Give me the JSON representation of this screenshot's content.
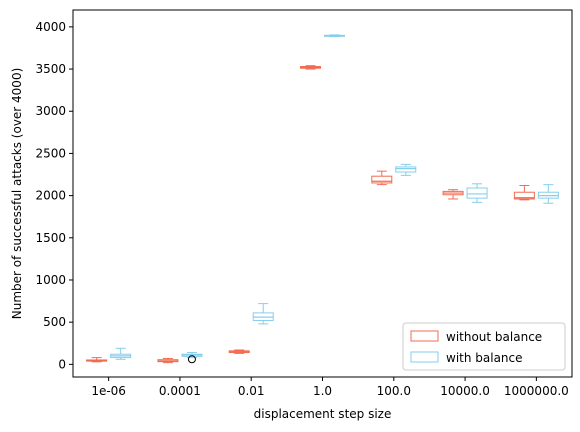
{
  "chart_data": {
    "type": "box",
    "xlabel": "displacement step size",
    "ylabel": "Number of successful attacks (over 4000)",
    "ylim": [
      -150,
      4200
    ],
    "yticks": [
      0,
      500,
      1000,
      1500,
      2000,
      2500,
      3000,
      3500,
      4000
    ],
    "categories": [
      "1e-06",
      "0.0001",
      "0.01",
      "1.0",
      "100.0",
      "10000.0",
      "1000000.0"
    ],
    "legend_position": "lower-right",
    "series": [
      {
        "name": "without balance",
        "color": "#f26b50",
        "boxes": [
          {
            "whislo": 30,
            "q1": 38,
            "med": 45,
            "q3": 52,
            "whishi": 80,
            "fliers": []
          },
          {
            "whislo": 20,
            "q1": 32,
            "med": 40,
            "q3": 55,
            "whishi": 70,
            "fliers": []
          },
          {
            "whislo": 130,
            "q1": 140,
            "med": 150,
            "q3": 160,
            "whishi": 170,
            "fliers": []
          },
          {
            "whislo": 3500,
            "q1": 3510,
            "med": 3520,
            "q3": 3530,
            "whishi": 3540,
            "fliers": []
          },
          {
            "whislo": 2130,
            "q1": 2150,
            "med": 2170,
            "q3": 2230,
            "whishi": 2290,
            "fliers": []
          },
          {
            "whislo": 1960,
            "q1": 2010,
            "med": 2030,
            "q3": 2050,
            "whishi": 2070,
            "fliers": []
          },
          {
            "whislo": 1950,
            "q1": 1960,
            "med": 1975,
            "q3": 2040,
            "whishi": 2120,
            "fliers": []
          }
        ]
      },
      {
        "name": "with balance",
        "color": "#87ceeb",
        "boxes": [
          {
            "whislo": 60,
            "q1": 80,
            "med": 100,
            "q3": 120,
            "whishi": 190,
            "fliers": []
          },
          {
            "whislo": 80,
            "q1": 95,
            "med": 110,
            "q3": 120,
            "whishi": 140,
            "fliers": [
              60
            ]
          },
          {
            "whislo": 480,
            "q1": 520,
            "med": 560,
            "q3": 610,
            "whishi": 720,
            "fliers": []
          },
          {
            "whislo": 3885,
            "q1": 3890,
            "med": 3895,
            "q3": 3900,
            "whishi": 3905,
            "fliers": []
          },
          {
            "whislo": 2240,
            "q1": 2280,
            "med": 2320,
            "q3": 2340,
            "whishi": 2370,
            "fliers": []
          },
          {
            "whislo": 1920,
            "q1": 1970,
            "med": 2020,
            "q3": 2090,
            "whishi": 2140,
            "fliers": []
          },
          {
            "whislo": 1910,
            "q1": 1970,
            "med": 2000,
            "q3": 2040,
            "whishi": 2130,
            "fliers": []
          }
        ]
      }
    ]
  }
}
